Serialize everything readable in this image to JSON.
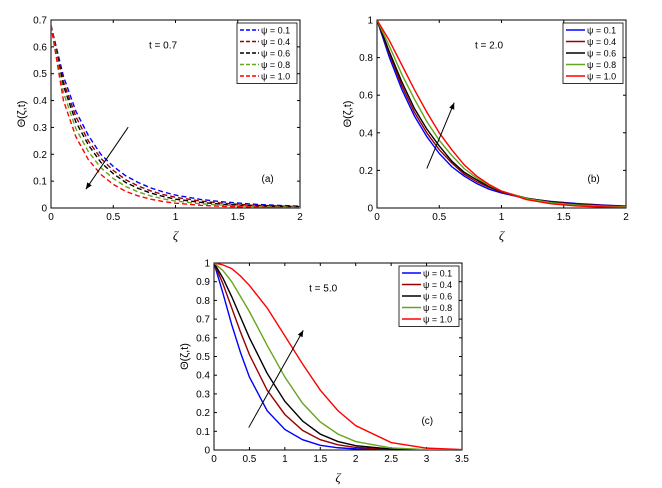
{
  "chart_data": [
    {
      "type": "line",
      "panel_label": "(a)",
      "annotation": "t = 0.7",
      "xlabel": "ζ",
      "ylabel": "Θ(ζ,t)",
      "xlim": [
        0,
        2
      ],
      "ylim": [
        0,
        0.7
      ],
      "x_ticks": [
        "0",
        "0.5",
        "1",
        "1.5",
        "2"
      ],
      "y_ticks": [
        "0",
        "0.1",
        "0.2",
        "0.3",
        "0.4",
        "0.5",
        "0.6",
        "0.7"
      ],
      "line_style": "dashed",
      "legend_position": "top-right",
      "arrow": "down",
      "x": [
        0,
        0.1,
        0.2,
        0.3,
        0.4,
        0.5,
        0.6,
        0.7,
        0.8,
        0.9,
        1.0,
        1.2,
        1.4,
        1.6,
        1.8,
        2.0
      ],
      "series": [
        {
          "name": "ψ = 0.1",
          "color": "#0000ff",
          "values": [
            0.68,
            0.49,
            0.36,
            0.27,
            0.2,
            0.155,
            0.12,
            0.095,
            0.075,
            0.06,
            0.048,
            0.032,
            0.022,
            0.015,
            0.01,
            0.007
          ]
        },
        {
          "name": "ψ = 0.4",
          "color": "#990000",
          "values": [
            0.68,
            0.47,
            0.34,
            0.25,
            0.185,
            0.14,
            0.105,
            0.082,
            0.064,
            0.05,
            0.04,
            0.026,
            0.017,
            0.011,
            0.008,
            0.005
          ]
        },
        {
          "name": "ψ = 0.6",
          "color": "#000000",
          "values": [
            0.68,
            0.455,
            0.32,
            0.235,
            0.17,
            0.128,
            0.095,
            0.073,
            0.056,
            0.043,
            0.033,
            0.021,
            0.013,
            0.009,
            0.006,
            0.004
          ]
        },
        {
          "name": "ψ = 0.8",
          "color": "#66a61e",
          "values": [
            0.68,
            0.43,
            0.295,
            0.21,
            0.15,
            0.11,
            0.08,
            0.06,
            0.045,
            0.034,
            0.026,
            0.016,
            0.01,
            0.006,
            0.004,
            0.003
          ]
        },
        {
          "name": "ψ = 1.0",
          "color": "#ff0000",
          "values": [
            0.68,
            0.4,
            0.265,
            0.18,
            0.125,
            0.088,
            0.062,
            0.045,
            0.033,
            0.024,
            0.018,
            0.01,
            0.006,
            0.004,
            0.002,
            0.001
          ]
        }
      ]
    },
    {
      "type": "line",
      "panel_label": "(b)",
      "annotation": "t = 2.0",
      "xlabel": "ζ",
      "ylabel": "Θ(ζ,t)",
      "xlim": [
        0,
        2
      ],
      "ylim": [
        0,
        1
      ],
      "x_ticks": [
        "0",
        "0.5",
        "1",
        "1.5",
        "2"
      ],
      "y_ticks": [
        "0",
        "0.2",
        "0.4",
        "0.6",
        "0.8",
        "1"
      ],
      "line_style": "solid",
      "legend_position": "top-right",
      "arrow": "up",
      "x": [
        0,
        0.1,
        0.2,
        0.3,
        0.4,
        0.5,
        0.6,
        0.7,
        0.8,
        0.9,
        1.0,
        1.2,
        1.4,
        1.6,
        1.8,
        2.0
      ],
      "series": [
        {
          "name": "ψ = 0.1",
          "color": "#0000ff",
          "values": [
            1,
            0.8,
            0.63,
            0.49,
            0.38,
            0.29,
            0.22,
            0.17,
            0.13,
            0.1,
            0.08,
            0.05,
            0.035,
            0.024,
            0.016,
            0.01
          ]
        },
        {
          "name": "ψ = 0.4",
          "color": "#990000",
          "values": [
            1,
            0.82,
            0.65,
            0.51,
            0.4,
            0.31,
            0.24,
            0.18,
            0.14,
            0.11,
            0.085,
            0.052,
            0.033,
            0.021,
            0.014,
            0.009
          ]
        },
        {
          "name": "ψ = 0.6",
          "color": "#000000",
          "values": [
            1,
            0.83,
            0.67,
            0.53,
            0.42,
            0.33,
            0.25,
            0.19,
            0.15,
            0.115,
            0.088,
            0.052,
            0.031,
            0.019,
            0.012,
            0.008
          ]
        },
        {
          "name": "ψ = 0.8",
          "color": "#66a61e",
          "values": [
            1,
            0.86,
            0.71,
            0.58,
            0.46,
            0.36,
            0.28,
            0.21,
            0.16,
            0.12,
            0.09,
            0.05,
            0.028,
            0.016,
            0.01,
            0.006
          ]
        },
        {
          "name": "ψ = 1.0",
          "color": "#ff0000",
          "values": [
            1,
            0.89,
            0.76,
            0.63,
            0.51,
            0.4,
            0.31,
            0.23,
            0.17,
            0.125,
            0.09,
            0.045,
            0.022,
            0.011,
            0.006,
            0.003
          ]
        }
      ]
    },
    {
      "type": "line",
      "panel_label": "(c)",
      "annotation": "t = 5.0",
      "xlabel": "ζ",
      "ylabel": "Θ(ζ,t)",
      "xlim": [
        0,
        3.5
      ],
      "ylim": [
        0,
        1
      ],
      "x_ticks": [
        "0",
        "0.5",
        "1",
        "1.5",
        "2",
        "2.5",
        "3",
        "3.5"
      ],
      "y_ticks": [
        "0",
        "0.1",
        "0.2",
        "0.3",
        "0.4",
        "0.5",
        "0.6",
        "0.7",
        "0.8",
        "0.9",
        "1"
      ],
      "line_style": "solid",
      "legend_position": "top-right",
      "arrow": "up",
      "x": [
        0,
        0.125,
        0.25,
        0.375,
        0.5,
        0.75,
        1.0,
        1.25,
        1.5,
        1.75,
        2.0,
        2.5,
        3.0,
        3.5
      ],
      "series": [
        {
          "name": "ψ = 0.1",
          "color": "#0000ff",
          "values": [
            1,
            0.84,
            0.67,
            0.52,
            0.39,
            0.21,
            0.11,
            0.055,
            0.025,
            0.012,
            0.006,
            0.001,
            0,
            0
          ]
        },
        {
          "name": "ψ = 0.4",
          "color": "#990000",
          "values": [
            1,
            0.89,
            0.76,
            0.63,
            0.51,
            0.32,
            0.19,
            0.105,
            0.055,
            0.028,
            0.014,
            0.003,
            0.001,
            0
          ]
        },
        {
          "name": "ψ = 0.6",
          "color": "#000000",
          "values": [
            1,
            0.92,
            0.82,
            0.71,
            0.6,
            0.41,
            0.26,
            0.155,
            0.085,
            0.045,
            0.023,
            0.005,
            0.001,
            0
          ]
        },
        {
          "name": "ψ = 0.8",
          "color": "#66a61e",
          "values": [
            1,
            0.96,
            0.9,
            0.82,
            0.74,
            0.56,
            0.39,
            0.25,
            0.15,
            0.085,
            0.045,
            0.011,
            0.002,
            0
          ]
        },
        {
          "name": "ψ = 1.0",
          "color": "#ff0000",
          "values": [
            1,
            0.99,
            0.97,
            0.93,
            0.88,
            0.76,
            0.61,
            0.46,
            0.32,
            0.21,
            0.13,
            0.04,
            0.01,
            0.002
          ]
        }
      ]
    }
  ]
}
